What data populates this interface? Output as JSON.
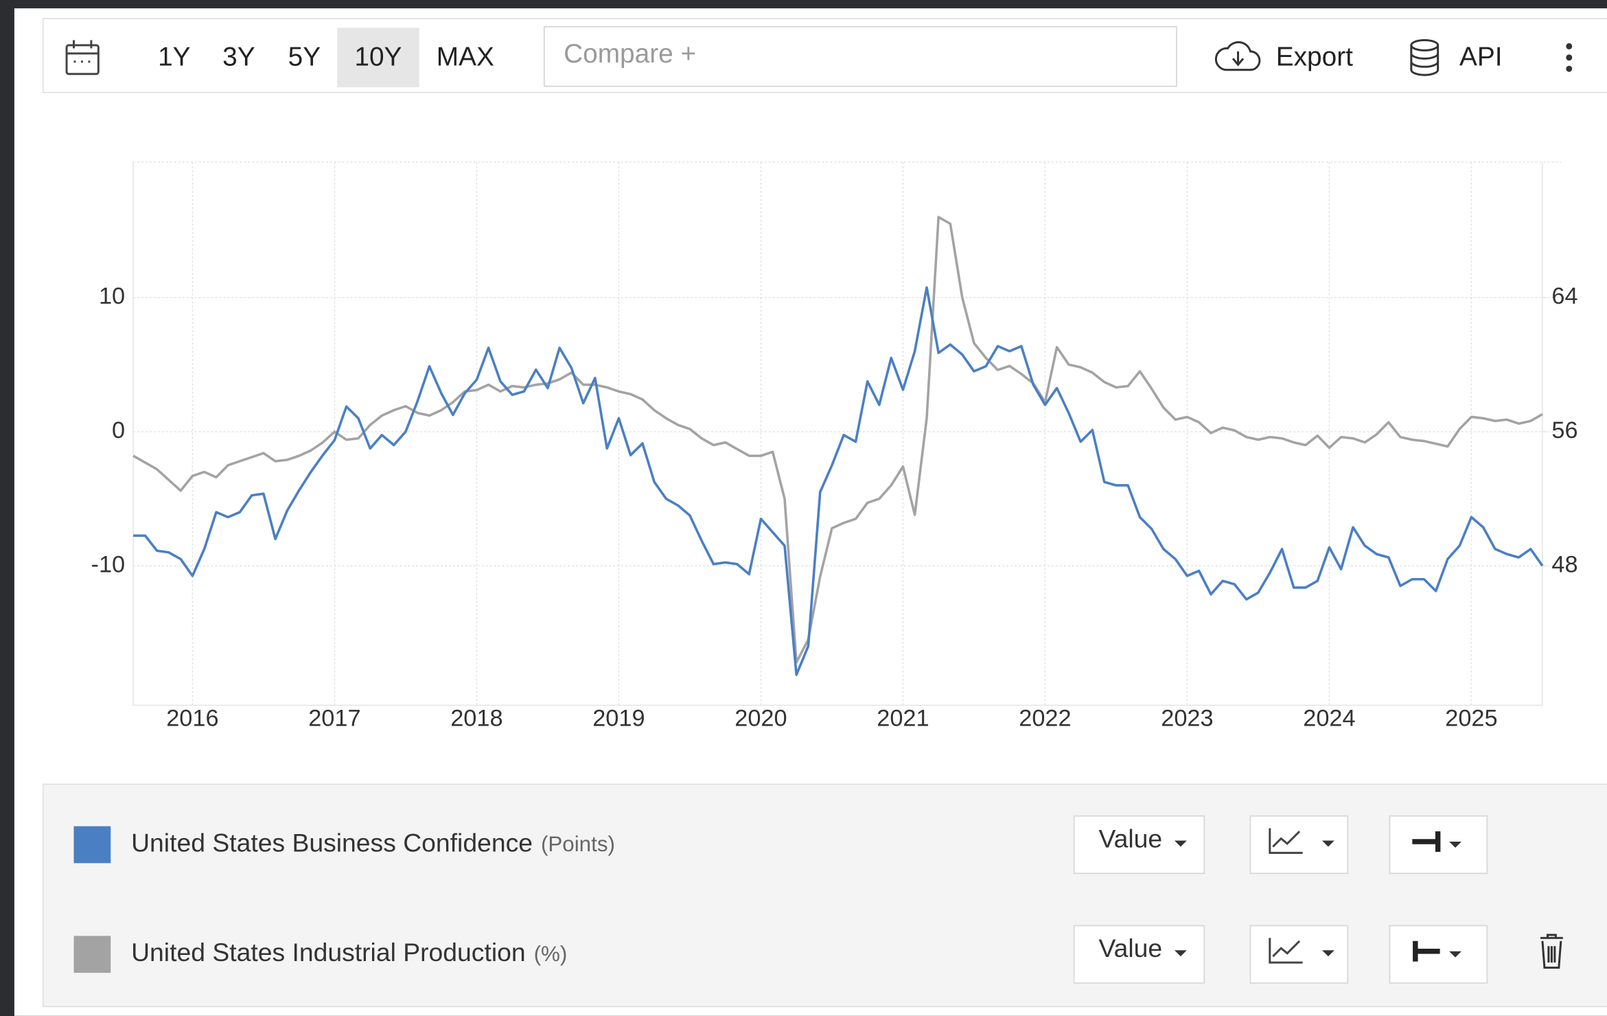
{
  "toolbar": {
    "ranges": [
      "1Y",
      "3Y",
      "5Y",
      "10Y",
      "MAX"
    ],
    "selected": "10Y",
    "compare_placeholder": "Compare +",
    "export": "Export",
    "api": "API"
  },
  "chart_data": {
    "type": "line",
    "x": [
      2015.583,
      2015.667,
      2015.75,
      2015.833,
      2015.917,
      2016,
      2016.083,
      2016.167,
      2016.25,
      2016.333,
      2016.417,
      2016.5,
      2016.583,
      2016.667,
      2016.75,
      2016.833,
      2016.917,
      2017,
      2017.083,
      2017.167,
      2017.25,
      2017.333,
      2017.417,
      2017.5,
      2017.583,
      2017.667,
      2017.75,
      2017.833,
      2017.917,
      2018,
      2018.083,
      2018.167,
      2018.25,
      2018.333,
      2018.417,
      2018.5,
      2018.583,
      2018.667,
      2018.75,
      2018.833,
      2018.917,
      2019,
      2019.083,
      2019.167,
      2019.25,
      2019.333,
      2019.417,
      2019.5,
      2019.583,
      2019.667,
      2019.75,
      2019.833,
      2019.917,
      2020,
      2020.083,
      2020.167,
      2020.25,
      2020.333,
      2020.417,
      2020.5,
      2020.583,
      2020.667,
      2020.75,
      2020.833,
      2020.917,
      2021,
      2021.083,
      2021.167,
      2021.25,
      2021.333,
      2021.417,
      2021.5,
      2021.583,
      2021.667,
      2021.75,
      2021.833,
      2021.917,
      2022,
      2022.083,
      2022.167,
      2022.25,
      2022.333,
      2022.417,
      2022.5,
      2022.583,
      2022.667,
      2022.75,
      2022.833,
      2022.917,
      2023,
      2023.083,
      2023.167,
      2023.25,
      2023.333,
      2023.417,
      2023.5,
      2023.583,
      2023.667,
      2023.75,
      2023.833,
      2023.917,
      2024,
      2024.083,
      2024.167,
      2024.25,
      2024.333,
      2024.417,
      2024.5,
      2024.583,
      2024.667,
      2024.75,
      2024.833,
      2024.917,
      2025,
      2025.083,
      2025.167,
      2025.25,
      2025.333,
      2025.417,
      2025.5
    ],
    "xlim": [
      2015.583,
      2025.5
    ],
    "xticks": [
      2016,
      2017,
      2018,
      2019,
      2020,
      2021,
      2022,
      2023,
      2024,
      2025
    ],
    "ylim": [
      -20.4,
      20.1
    ],
    "yticks": [
      -10,
      0,
      10
    ],
    "y2lim": [
      39.68,
      72.08
    ],
    "y2ticks": [
      48,
      56,
      64
    ],
    "grid": true,
    "series": [
      {
        "name": "United States Business Confidence",
        "unit": "(Points)",
        "color": "#4a7fc4",
        "axis": "y2",
        "values": [
          49.8,
          49.8,
          48.9,
          48.8,
          48.4,
          47.4,
          49.0,
          51.2,
          50.9,
          51.2,
          52.2,
          52.3,
          49.6,
          51.3,
          52.5,
          53.6,
          54.6,
          55.5,
          57.5,
          56.8,
          55.0,
          55.8,
          55.2,
          56.0,
          57.8,
          59.9,
          58.3,
          57.0,
          58.3,
          59.1,
          61.0,
          59.0,
          58.2,
          58.4,
          59.7,
          58.6,
          61.0,
          59.8,
          57.7,
          59.2,
          55.0,
          56.8,
          54.6,
          55.3,
          53.0,
          52.0,
          51.6,
          51.0,
          49.5,
          48.1,
          48.2,
          48.1,
          47.5,
          50.8,
          50.0,
          49.2,
          41.5,
          43.2,
          52.4,
          54.0,
          55.8,
          55.4,
          59.0,
          57.6,
          60.4,
          58.5,
          60.8,
          64.6,
          60.7,
          61.2,
          60.6,
          59.6,
          59.9,
          61.1,
          60.8,
          61.1,
          58.8,
          57.6,
          58.6,
          57.1,
          55.4,
          56.1,
          53.0,
          52.8,
          52.8,
          50.9,
          50.2,
          49.0,
          48.4,
          47.4,
          47.7,
          46.3,
          47.1,
          46.9,
          46.0,
          46.4,
          47.6,
          49.0,
          46.7,
          46.7,
          47.1,
          49.1,
          47.8,
          50.3,
          49.2,
          48.7,
          48.5,
          46.8,
          47.2,
          47.2,
          46.5,
          48.4,
          49.2,
          50.9,
          50.3,
          49.0,
          48.7,
          48.5,
          49.0,
          48.0
        ]
      },
      {
        "name": "United States Industrial Production",
        "unit": "(%)",
        "color": "#a3a3a3",
        "values": [
          -1.8,
          -2.3,
          -2.8,
          -3.6,
          -4.4,
          -3.3,
          -3.0,
          -3.4,
          -2.5,
          -2.2,
          -1.9,
          -1.6,
          -2.2,
          -2.1,
          -1.8,
          -1.4,
          -0.8,
          0.0,
          -0.6,
          -0.5,
          0.5,
          1.2,
          1.6,
          1.9,
          1.4,
          1.2,
          1.6,
          2.2,
          3.0,
          3.1,
          3.5,
          3.0,
          3.4,
          3.3,
          3.5,
          3.6,
          3.9,
          4.4,
          3.5,
          3.5,
          3.3,
          3.0,
          2.8,
          2.4,
          1.6,
          1.0,
          0.5,
          0.2,
          -0.5,
          -1.0,
          -0.8,
          -1.3,
          -1.8,
          -1.8,
          -1.5,
          -5.0,
          -17.2,
          -15.5,
          -10.8,
          -7.2,
          -6.8,
          -6.5,
          -5.3,
          -5.0,
          -4.0,
          -2.6,
          -6.2,
          1.0,
          16.0,
          15.5,
          10.0,
          6.6,
          5.5,
          4.6,
          4.9,
          4.3,
          3.6,
          2.2,
          6.3,
          5.0,
          4.8,
          4.4,
          3.7,
          3.3,
          3.4,
          4.5,
          3.2,
          1.8,
          0.9,
          1.1,
          0.7,
          -0.1,
          0.3,
          0.1,
          -0.4,
          -0.6,
          -0.4,
          -0.5,
          -0.8,
          -1.0,
          -0.3,
          -1.2,
          -0.4,
          -0.5,
          -0.8,
          -0.2,
          0.7,
          -0.4,
          -0.6,
          -0.7,
          -0.9,
          -1.1,
          0.2,
          1.1,
          1.0,
          0.8,
          0.9,
          0.6,
          0.8,
          1.3
        ]
      }
    ]
  },
  "legend_rows": [
    {
      "button": "Value"
    },
    {
      "button": "Value"
    }
  ]
}
